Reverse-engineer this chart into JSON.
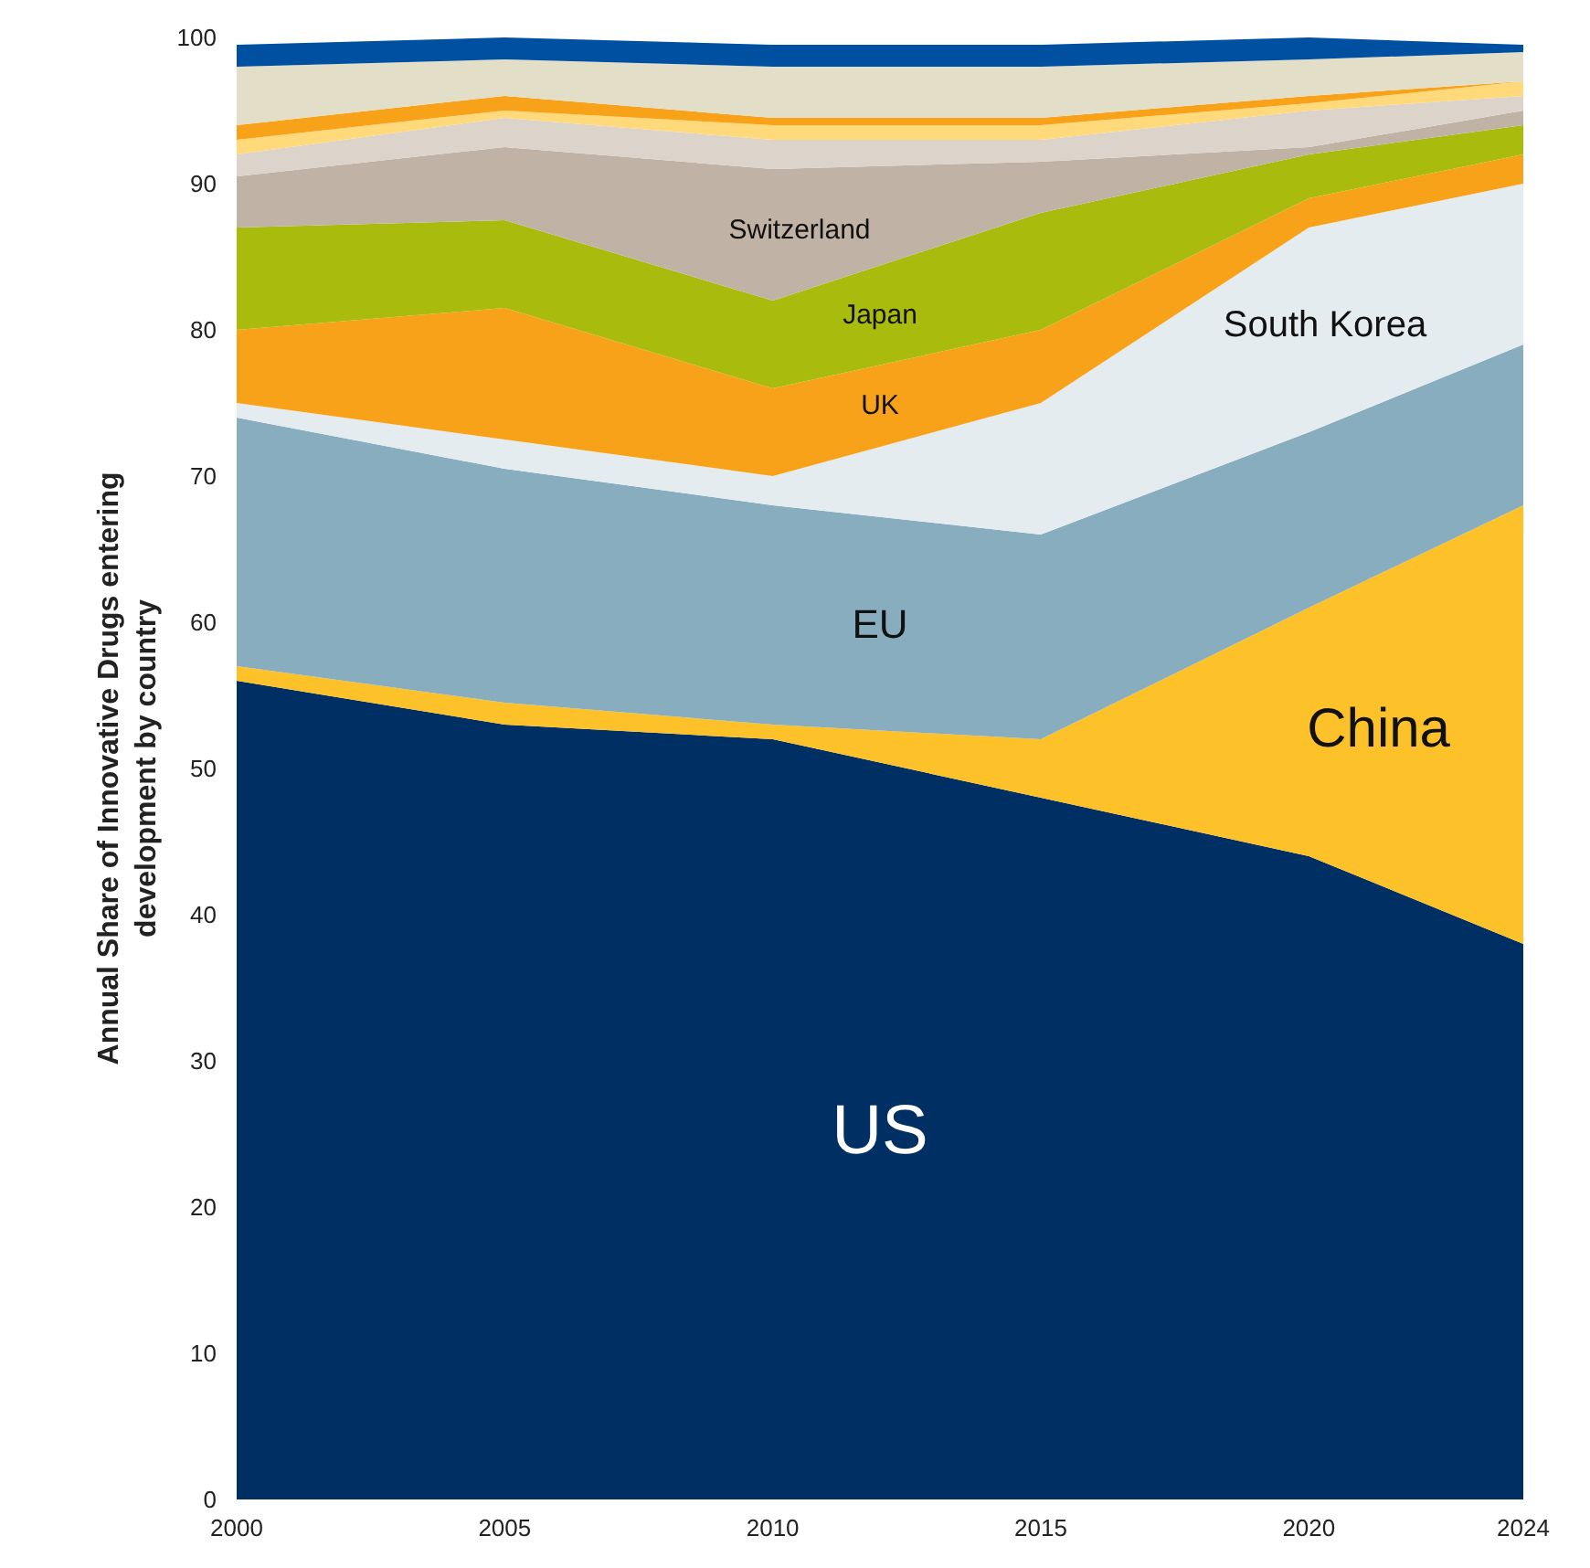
{
  "chart_data": {
    "type": "area",
    "stacked": true,
    "ylabel": "Annual Share of Innovative Drugs entering development by country",
    "x": [
      2000,
      2005,
      2010,
      2015,
      2020,
      2024
    ],
    "xlim": [
      2000,
      2024
    ],
    "xticks": [
      2000,
      2005,
      2010,
      2015,
      2020,
      2024
    ],
    "ylim": [
      0,
      100
    ],
    "yticks": [
      0,
      10,
      20,
      30,
      40,
      50,
      60,
      70,
      80,
      90,
      100
    ],
    "grid": false,
    "series": [
      {
        "name": "US",
        "color": "#003063",
        "values": [
          56,
          53,
          52,
          48,
          44,
          38
        ]
      },
      {
        "name": "China",
        "color": "#fdc12a",
        "values": [
          1,
          1.5,
          1,
          4,
          17,
          30
        ]
      },
      {
        "name": "EU",
        "color": "#88adbf",
        "values": [
          17,
          16,
          15,
          14,
          12,
          11
        ]
      },
      {
        "name": "South Korea",
        "color": "#e4ecf0",
        "values": [
          1,
          2,
          2,
          9,
          14,
          11
        ]
      },
      {
        "name": "UK",
        "color": "#f8a21a",
        "values": [
          5,
          9,
          6,
          5,
          2,
          2
        ]
      },
      {
        "name": "Japan",
        "color": "#a9bc0e",
        "values": [
          7,
          6,
          6,
          8,
          3,
          2
        ]
      },
      {
        "name": "Switzerland",
        "color": "#c0b3a5",
        "values": [
          3.5,
          5,
          9,
          3.5,
          0.5,
          1
        ]
      },
      {
        "color": "#dcd3ca",
        "values": [
          1.5,
          2,
          2,
          1.5,
          2.5,
          1
        ]
      },
      {
        "color": "#ffd97a",
        "values": [
          1,
          0.5,
          1,
          1,
          0.5,
          1
        ]
      },
      {
        "color": "#f8a21a",
        "values": [
          1,
          1,
          0.5,
          0.5,
          0.5,
          0
        ]
      },
      {
        "color": "#e3dec7",
        "values": [
          4,
          2.5,
          3.5,
          3.5,
          2.5,
          2
        ]
      },
      {
        "color": "#0050a2",
        "values": [
          1.5,
          1.5,
          1.5,
          1.5,
          1.5,
          0.5
        ]
      }
    ]
  }
}
